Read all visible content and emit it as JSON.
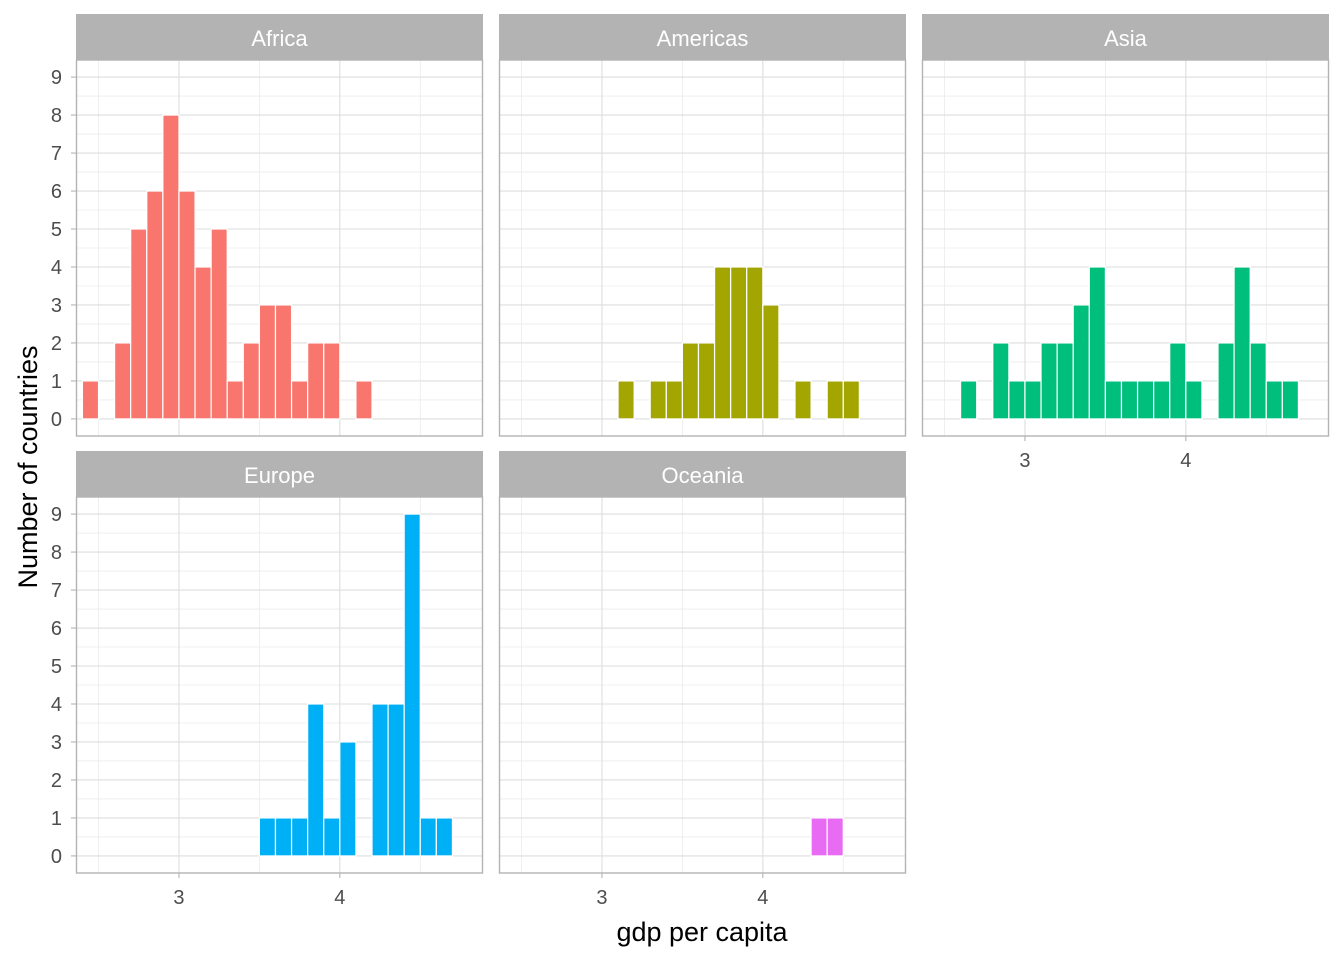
{
  "chart_data": {
    "type": "bar",
    "subtype": "faceted-histogram",
    "xlabel": "gdp per capita",
    "ylabel": "Number of countries",
    "x_ticks": [
      3,
      4
    ],
    "y_ticks": [
      0,
      1,
      2,
      3,
      4,
      5,
      6,
      7,
      8,
      9
    ],
    "xlim": [
      2.36,
      4.89
    ],
    "ylim": [
      -0.45,
      9.45
    ],
    "bin_width": 0.1,
    "grid": true,
    "legend": "none",
    "facets": [
      {
        "name": "Africa",
        "color": "#F8766D",
        "bins": [
          {
            "x": 2.45,
            "count": 1
          },
          {
            "x": 2.55,
            "count": 0
          },
          {
            "x": 2.65,
            "count": 2
          },
          {
            "x": 2.75,
            "count": 5
          },
          {
            "x": 2.85,
            "count": 6
          },
          {
            "x": 2.95,
            "count": 8
          },
          {
            "x": 3.05,
            "count": 6
          },
          {
            "x": 3.15,
            "count": 4
          },
          {
            "x": 3.25,
            "count": 5
          },
          {
            "x": 3.35,
            "count": 1
          },
          {
            "x": 3.45,
            "count": 2
          },
          {
            "x": 3.55,
            "count": 3
          },
          {
            "x": 3.65,
            "count": 3
          },
          {
            "x": 3.75,
            "count": 1
          },
          {
            "x": 3.85,
            "count": 2
          },
          {
            "x": 3.95,
            "count": 2
          },
          {
            "x": 4.05,
            "count": 0
          },
          {
            "x": 4.15,
            "count": 1
          },
          {
            "x": 4.25,
            "count": 0
          },
          {
            "x": 4.35,
            "count": 0
          },
          {
            "x": 4.45,
            "count": 0
          },
          {
            "x": 4.55,
            "count": 0
          },
          {
            "x": 4.65,
            "count": 0
          },
          {
            "x": 4.75,
            "count": 0
          }
        ]
      },
      {
        "name": "Americas",
        "color": "#A3A500",
        "bins": [
          {
            "x": 3.15,
            "count": 1
          },
          {
            "x": 3.25,
            "count": 0
          },
          {
            "x": 3.35,
            "count": 1
          },
          {
            "x": 3.45,
            "count": 1
          },
          {
            "x": 3.55,
            "count": 2
          },
          {
            "x": 3.65,
            "count": 2
          },
          {
            "x": 3.75,
            "count": 4
          },
          {
            "x": 3.85,
            "count": 4
          },
          {
            "x": 3.95,
            "count": 4
          },
          {
            "x": 4.05,
            "count": 3
          },
          {
            "x": 4.15,
            "count": 0
          },
          {
            "x": 4.25,
            "count": 1
          },
          {
            "x": 4.35,
            "count": 0
          },
          {
            "x": 4.45,
            "count": 1
          },
          {
            "x": 4.55,
            "count": 1
          }
        ]
      },
      {
        "name": "Asia",
        "color": "#00BF7D",
        "bins": [
          {
            "x": 2.65,
            "count": 1
          },
          {
            "x": 2.75,
            "count": 0
          },
          {
            "x": 2.85,
            "count": 2
          },
          {
            "x": 2.95,
            "count": 1
          },
          {
            "x": 3.05,
            "count": 1
          },
          {
            "x": 3.15,
            "count": 2
          },
          {
            "x": 3.25,
            "count": 2
          },
          {
            "x": 3.35,
            "count": 3
          },
          {
            "x": 3.45,
            "count": 4
          },
          {
            "x": 3.55,
            "count": 1
          },
          {
            "x": 3.65,
            "count": 1
          },
          {
            "x": 3.75,
            "count": 1
          },
          {
            "x": 3.85,
            "count": 1
          },
          {
            "x": 3.95,
            "count": 2
          },
          {
            "x": 4.05,
            "count": 1
          },
          {
            "x": 4.15,
            "count": 0
          },
          {
            "x": 4.25,
            "count": 2
          },
          {
            "x": 4.35,
            "count": 4
          },
          {
            "x": 4.45,
            "count": 2
          },
          {
            "x": 4.55,
            "count": 1
          },
          {
            "x": 4.65,
            "count": 1
          }
        ]
      },
      {
        "name": "Europe",
        "color": "#00B0F6",
        "bins": [
          {
            "x": 3.55,
            "count": 1
          },
          {
            "x": 3.65,
            "count": 1
          },
          {
            "x": 3.75,
            "count": 1
          },
          {
            "x": 3.85,
            "count": 4
          },
          {
            "x": 3.95,
            "count": 1
          },
          {
            "x": 4.05,
            "count": 3
          },
          {
            "x": 4.15,
            "count": 0
          },
          {
            "x": 4.25,
            "count": 4
          },
          {
            "x": 4.35,
            "count": 4
          },
          {
            "x": 4.45,
            "count": 9
          },
          {
            "x": 4.55,
            "count": 1
          },
          {
            "x": 4.65,
            "count": 1
          }
        ]
      },
      {
        "name": "Oceania",
        "color": "#E76BF3",
        "bins": [
          {
            "x": 4.35,
            "count": 1
          },
          {
            "x": 4.45,
            "count": 1
          }
        ]
      }
    ]
  }
}
